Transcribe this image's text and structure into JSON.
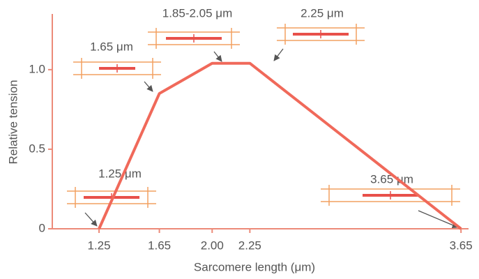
{
  "chart_data": {
    "type": "line",
    "xlabel": "Sarcomere length (μm)",
    "ylabel": "Relative tension",
    "x": [
      1.25,
      1.65,
      2.0,
      2.25,
      3.65
    ],
    "series": [
      {
        "color": "#f0695a",
        "values": [
          0,
          0.85,
          1.04,
          1.04,
          0
        ]
      }
    ],
    "xlim": [
      0.94,
      3.7
    ],
    "ylim": [
      0,
      1.35
    ],
    "xticks": [
      1.25,
      1.65,
      {
        "value": 2,
        "label": "2.00"
      },
      2.25,
      3.65
    ],
    "yticks": [
      0,
      0.5,
      {
        "value": 1,
        "label": "1.0"
      }
    ],
    "annotations": [
      "1.25 μm",
      "1.65 μm",
      "1.85-2.05 μm",
      "2.25 μm",
      "3.65 μm"
    ]
  }
}
